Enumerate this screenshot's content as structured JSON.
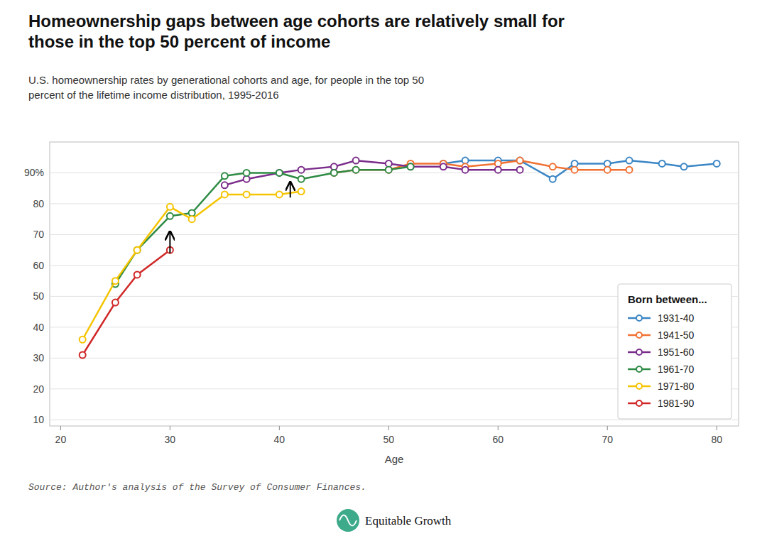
{
  "chart_data": {
    "type": "line",
    "title": "Homeownership gaps between age cohorts are relatively small for\nthose in the top 50 percent of income",
    "subtitle": "U.S. homeownership rates by generational cohorts and age, for people in the top 50\npercent of the lifetime income distribution, 1995-2016",
    "x_label": "Age",
    "source": "Source: Author's analysis of the Survey of Consumer Finances.",
    "branding": "Equitable Growth",
    "legend_title": "Born between...",
    "legend": "lower right",
    "grid": true,
    "marker": "circle",
    "series": [
      {
        "name": "1931-40",
        "color": "#3B86C5",
        "x": [
          55,
          57,
          60,
          62,
          65,
          67,
          70,
          72,
          75,
          77,
          80
        ],
        "values": [
          93,
          94,
          94,
          94,
          88,
          93,
          93,
          94,
          93,
          92,
          93
        ]
      },
      {
        "name": "1941-50",
        "color": "#F07132",
        "x": [
          45,
          47,
          50,
          52,
          55,
          57,
          60,
          62,
          65,
          67,
          70,
          72
        ],
        "values": [
          90,
          91,
          91,
          93,
          93,
          92,
          93,
          94,
          92,
          91,
          91,
          91
        ]
      },
      {
        "name": "1951-60",
        "color": "#7B2D8B",
        "x": [
          35,
          37,
          40,
          42,
          45,
          47,
          50,
          52,
          55,
          57,
          60,
          62
        ],
        "values": [
          86,
          88,
          90,
          91,
          92,
          94,
          93,
          92,
          92,
          91,
          91,
          91
        ]
      },
      {
        "name": "1961-70",
        "color": "#2E8B44",
        "x": [
          25,
          27,
          30,
          32,
          35,
          37,
          40,
          42,
          45,
          47,
          50,
          52
        ],
        "values": [
          54,
          65,
          76,
          77,
          89,
          90,
          90,
          88,
          90,
          91,
          91,
          92
        ]
      },
      {
        "name": "1971-80",
        "color": "#F5C400",
        "x": [
          22,
          25,
          27,
          30,
          32,
          35,
          37,
          40,
          42
        ],
        "values": [
          36,
          55,
          65,
          79,
          75,
          83,
          83,
          83,
          84
        ]
      },
      {
        "name": "1981-90",
        "color": "#D02727",
        "x": [
          22,
          25,
          27,
          30
        ],
        "values": [
          31,
          48,
          57,
          65
        ]
      }
    ],
    "annotations": [
      {
        "type": "arrow",
        "x": 30,
        "y": 71,
        "x_from": 30,
        "y_from": 64
      },
      {
        "type": "arrow",
        "x": 41,
        "y": 87,
        "x_from": 41,
        "y_from": 82
      }
    ],
    "xlim": [
      19,
      82
    ],
    "xticks": [
      20,
      30,
      40,
      50,
      60,
      70,
      80
    ],
    "ylim": [
      8,
      100
    ],
    "yticks": [
      10,
      20,
      30,
      40,
      50,
      60,
      70,
      80,
      {
        "value": 90,
        "label": "90%"
      }
    ]
  }
}
